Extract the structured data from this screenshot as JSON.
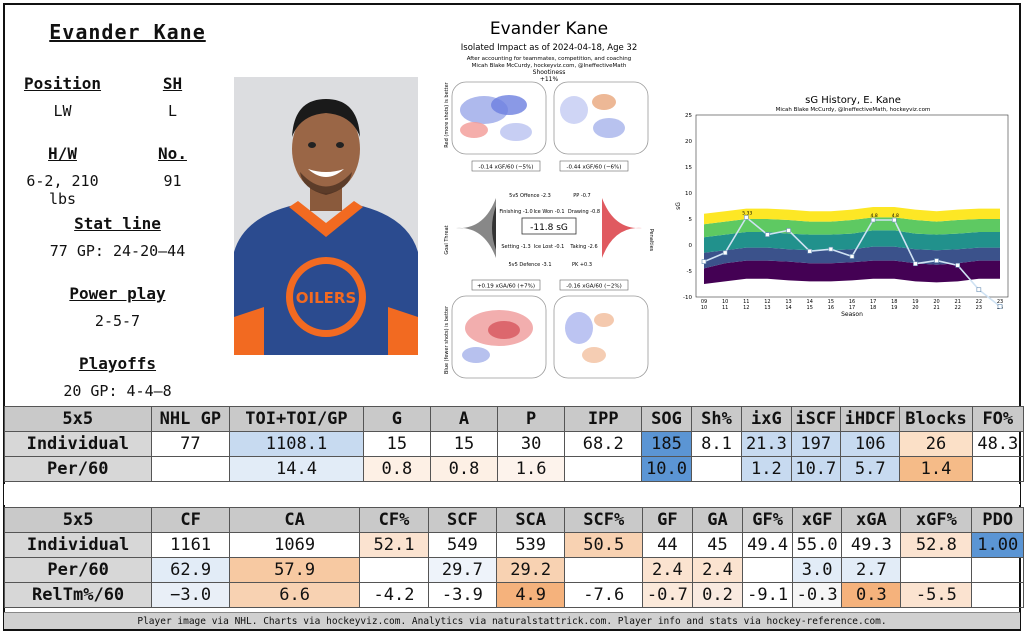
{
  "player": {
    "name": "Evander Kane",
    "position_label": "Position",
    "position": "LW",
    "shoots_label": "SH",
    "shoots": "L",
    "hw_label": "H/W",
    "hw": "6-2, 210 lbs",
    "no_label": "No.",
    "number": "91",
    "statline_label": "Stat line",
    "statline": "77 GP: 24-20—44",
    "pp_label": "Power play",
    "pp": "2-5-7",
    "playoffs_label": "Playoffs",
    "playoffs": "20 GP: 4-4—8"
  },
  "impact": {
    "title": "Evander Kane",
    "subtitle": "Isolated Impact as of 2024-04-18, Age 32",
    "line1": "After accounting for teammates, competition, and coaching",
    "line2": "Micah Blake McCurdy, hockeyviz.com, @IneffectiveMath",
    "shootiness": "Shootiness",
    "shootiness_val": "+11%",
    "left_axis_top": "Red (more shots) is better",
    "left_axis_bottom": "Blue (fewer shots) is better",
    "goal_threat": "Goal Threat",
    "penalties": "Penalties",
    "xgf": "-0.14 xGF/60 (−5%)",
    "xgf2": "-0.44 xGF/60 (−6%)",
    "xga": "+0.19 xGA/60 (+7%)",
    "xga2": "-0.16 xGA/60 (−2%)",
    "center": "-11.8 sG",
    "offence": "5v5 Offence -2.3",
    "pp": "PP -0.7",
    "finishing": "Finishing -1.0",
    "icewon": "Ice Won -0.1",
    "drawing": "Drawing -0.8",
    "setting": "Setting -1.3",
    "icelost": "Ice Lost -0.1",
    "taking": "Taking -2.6",
    "defence": "5v5 Defence -3.1",
    "pk": "PK +0.3"
  },
  "history": {
    "title": "sG History, E. Kane",
    "credit": "Micah Blake McCurdy, @IneffectiveMath, hockeyviz.com",
    "ylabel": "sG",
    "xlabel": "Season"
  },
  "chart_data": {
    "type": "line",
    "title": "sG History, E. Kane",
    "xlabel": "Season",
    "ylabel": "sG",
    "ylim": [
      -10,
      25
    ],
    "yticks": [
      -10,
      -5,
      0,
      5,
      10,
      15,
      20,
      25
    ],
    "x": [
      "09-10",
      "10-11",
      "11-12",
      "12-13",
      "13-14",
      "14-15",
      "15-16",
      "16-17",
      "17-18",
      "18-19",
      "19-20",
      "20-21",
      "21-22",
      "22-23",
      "23-24"
    ],
    "series": [
      {
        "values": [
          -3.2,
          -1.5,
          5.3,
          2.0,
          2.8,
          -1.2,
          -0.8,
          -2.2,
          4.8,
          4.8,
          -3.6,
          -3.0,
          -3.9,
          -8.6,
          -11.8
        ]
      }
    ],
    "point_labels": [
      "5.33",
      "4.8",
      "4.8"
    ],
    "bands": [
      "#440154",
      "#3b528b",
      "#21918c",
      "#5ec962",
      "#fde725"
    ]
  },
  "table1": {
    "header": [
      "5x5",
      "NHL GP",
      "TOI+TOI/GP",
      "G",
      "A",
      "P",
      "IPP",
      "SOG",
      "Sh%",
      "ixG",
      "iSCF",
      "iHDCF",
      "Blocks",
      "FO%"
    ],
    "rows": [
      {
        "cells": [
          "Individual",
          "77",
          "1108.1",
          "15",
          "15",
          "30",
          "68.2",
          "185",
          "8.1",
          "21.3",
          "197",
          "106",
          "26",
          "48.3"
        ],
        "colors": [
          "",
          "",
          "#c7daf0",
          "",
          "",
          "",
          "",
          "#5b95d4",
          "",
          "#c7daf0",
          "#c7daf0",
          "#c7daf0",
          "#fbe0c7",
          ""
        ]
      },
      {
        "cells": [
          "Per/60",
          "",
          "14.4",
          "0.8",
          "0.8",
          "1.6",
          "",
          "10.0",
          "",
          "1.2",
          "10.7",
          "5.7",
          "1.4",
          ""
        ],
        "colors": [
          "",
          "",
          "#e2ecf7",
          "#fdf0e5",
          "#fdf0e5",
          "#fdf3ec",
          "",
          "#5b95d4",
          "",
          "#c7daf0",
          "#c7daf0",
          "#c7daf0",
          "#f5bb88",
          ""
        ]
      }
    ]
  },
  "table2": {
    "header": [
      "5x5",
      "CF",
      "CA",
      "CF%",
      "SCF",
      "SCA",
      "SCF%",
      "GF",
      "GA",
      "GF%",
      "xGF",
      "xGA",
      "xGF%",
      "PDO"
    ],
    "rows": [
      {
        "cells": [
          "Individual",
          "1161",
          "1069",
          "52.1",
          "549",
          "539",
          "50.5",
          "44",
          "45",
          "49.4",
          "55.0",
          "49.3",
          "52.8",
          "1.00"
        ],
        "colors": [
          "",
          "",
          "",
          "#fbe3d0",
          "",
          "",
          "#f8d2b2",
          "",
          "",
          "",
          "",
          "",
          "#fbe3d0",
          "#5b95d4"
        ]
      },
      {
        "cells": [
          "Per/60",
          "62.9",
          "57.9",
          "",
          "29.7",
          "29.2",
          "",
          "2.4",
          "2.4",
          "",
          "3.0",
          "2.7",
          "",
          ""
        ],
        "colors": [
          "",
          "#e2ecf7",
          "#f7c9a2",
          "",
          "#eef3fa",
          "#f8d2b2",
          "",
          "#fbe3d0",
          "#fbe3d0",
          "",
          "#e2ecf7",
          "#e2ecf7",
          "",
          ""
        ]
      },
      {
        "cells": [
          "RelTm%/60",
          "−3.0",
          "6.6",
          "-4.2",
          "-3.9",
          "4.9",
          "-7.6",
          "-0.7",
          "0.2",
          "-9.1",
          "-0.3",
          "0.3",
          "-5.5",
          ""
        ],
        "colors": [
          "",
          "#e9eff7",
          "#f8d2b2",
          "",
          "",
          "#f5b27c",
          "",
          "#fbe9da",
          "#f9eae0",
          "",
          "#f6f6f6",
          "#f5b27c",
          "#fbe3d0",
          ""
        ]
      }
    ]
  },
  "footer": "Player image via NHL. Charts via hockeyviz.com. Analytics via naturalstattrick.com. Player info and stats via hockey-reference.com."
}
